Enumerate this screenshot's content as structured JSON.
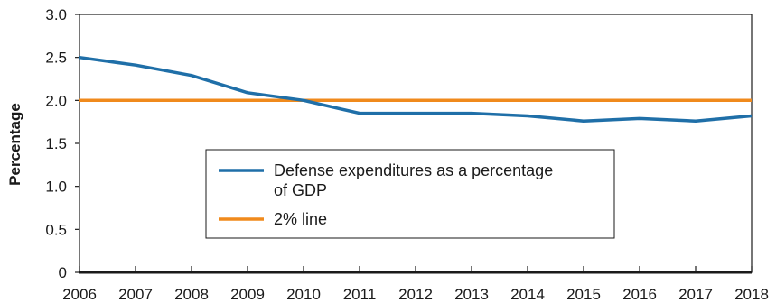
{
  "chart_data": {
    "type": "line",
    "ylabel": "Percentage",
    "xlabel": "",
    "title": "",
    "x": [
      2006,
      2007,
      2008,
      2009,
      2010,
      2011,
      2012,
      2013,
      2014,
      2015,
      2016,
      2017,
      2018
    ],
    "ylim": [
      0,
      3.0
    ],
    "xlim": [
      2006,
      2018
    ],
    "y_ticks": [
      "0",
      "0.5",
      "1.0",
      "1.5",
      "2.0",
      "2.5",
      "3.0"
    ],
    "x_ticks": [
      "2006",
      "2007",
      "2008",
      "2009",
      "2010",
      "2011",
      "2012",
      "2013",
      "2014",
      "2015",
      "2016",
      "2017",
      "2018"
    ],
    "series": [
      {
        "name": "Defense expenditures as a percentage of GDP",
        "legend_lines": [
          "Defense expenditures as a percentage",
          "of GDP"
        ],
        "color": "#1f6fa8",
        "values": [
          2.5,
          2.41,
          2.29,
          2.09,
          2.0,
          1.85,
          1.85,
          1.85,
          1.82,
          1.76,
          1.79,
          1.76,
          1.82
        ]
      },
      {
        "name": "2% line",
        "legend_lines": [
          "2% line"
        ],
        "color": "#f08a1c",
        "values": [
          2.0,
          2.0,
          2.0,
          2.0,
          2.0,
          2.0,
          2.0,
          2.0,
          2.0,
          2.0,
          2.0,
          2.0,
          2.0
        ]
      }
    ],
    "grid": false,
    "legend_position": "center"
  }
}
